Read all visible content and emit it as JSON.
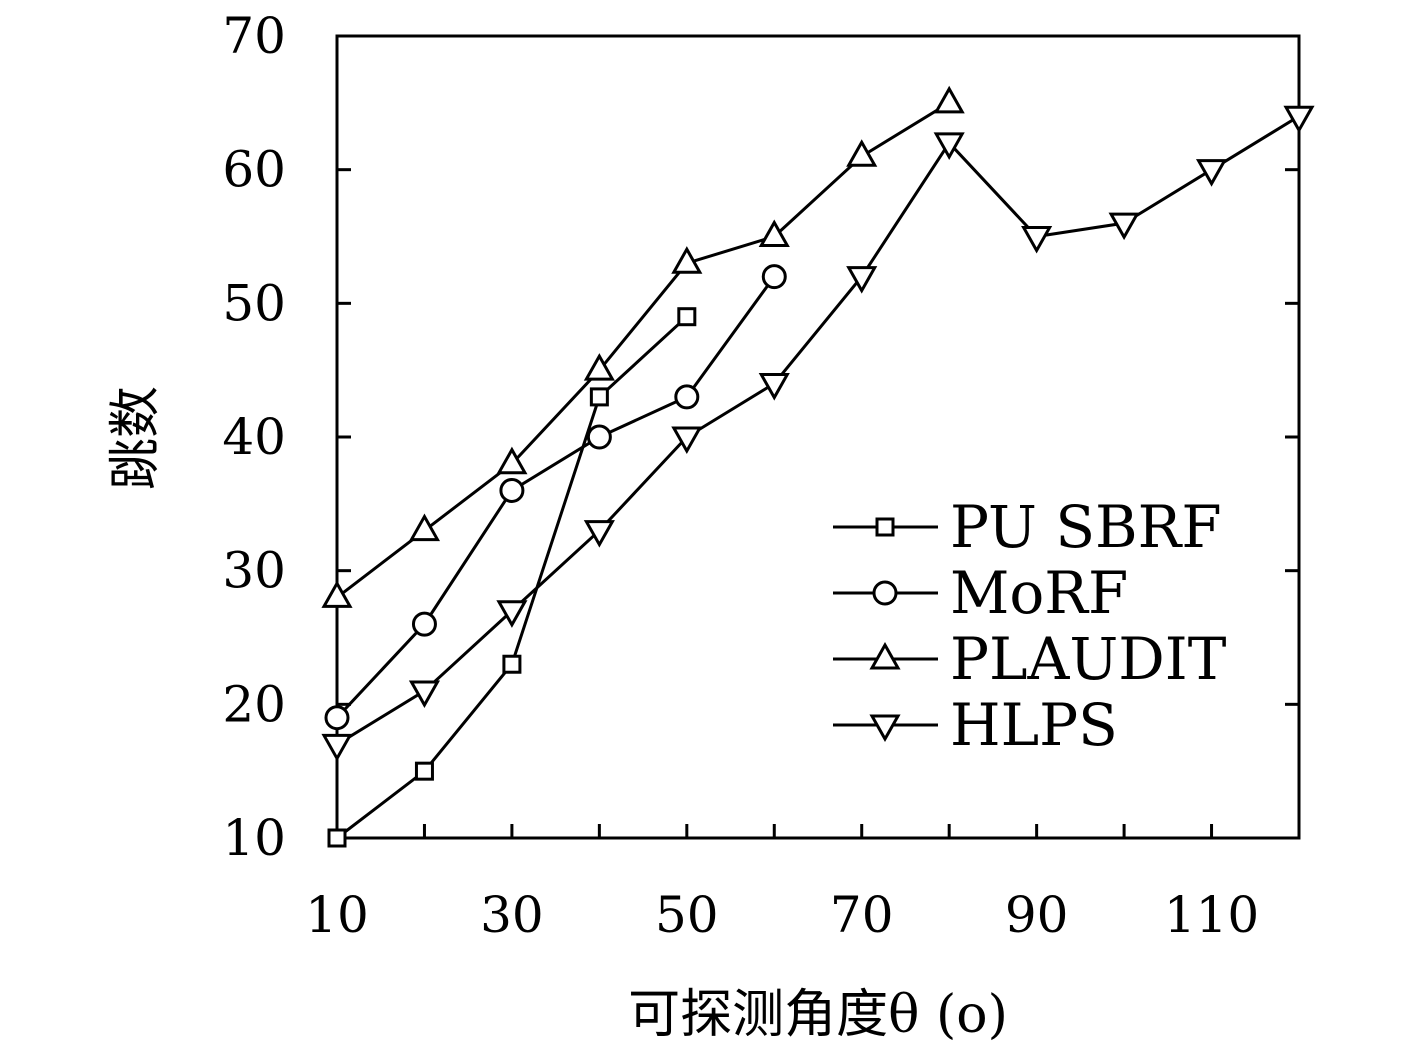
{
  "chart_data": {
    "type": "line",
    "title": "",
    "xlabel": "可探测角度θ (o)",
    "ylabel": "跳数",
    "xlim": [
      10,
      120
    ],
    "ylim": [
      10,
      70
    ],
    "xticks": [
      "10",
      "30",
      "50",
      "70",
      "90",
      "110"
    ],
    "yticks": [
      "10",
      "20",
      "30",
      "40",
      "50",
      "60",
      "70"
    ],
    "grid": false,
    "legend_position": "right",
    "series": [
      {
        "name": "PU SBRF",
        "marker": "square",
        "x": [
          10,
          20,
          30,
          40,
          50
        ],
        "y": [
          10,
          15,
          23,
          43,
          49
        ]
      },
      {
        "name": "MoRF",
        "marker": "circle",
        "x": [
          10,
          20,
          30,
          40,
          50,
          60
        ],
        "y": [
          19,
          26,
          36,
          40,
          43,
          52
        ]
      },
      {
        "name": "PLAUDIT",
        "marker": "triangle-up",
        "x": [
          10,
          20,
          30,
          40,
          50,
          60,
          70,
          80
        ],
        "y": [
          28,
          33,
          38,
          45,
          53,
          55,
          61,
          65
        ]
      },
      {
        "name": "HLPS",
        "marker": "triangle-down",
        "x": [
          10,
          20,
          30,
          40,
          50,
          60,
          70,
          80,
          90,
          100,
          110,
          120
        ],
        "y": [
          17,
          21,
          27,
          33,
          40,
          44,
          52,
          62,
          55,
          56,
          60,
          64
        ]
      }
    ]
  }
}
